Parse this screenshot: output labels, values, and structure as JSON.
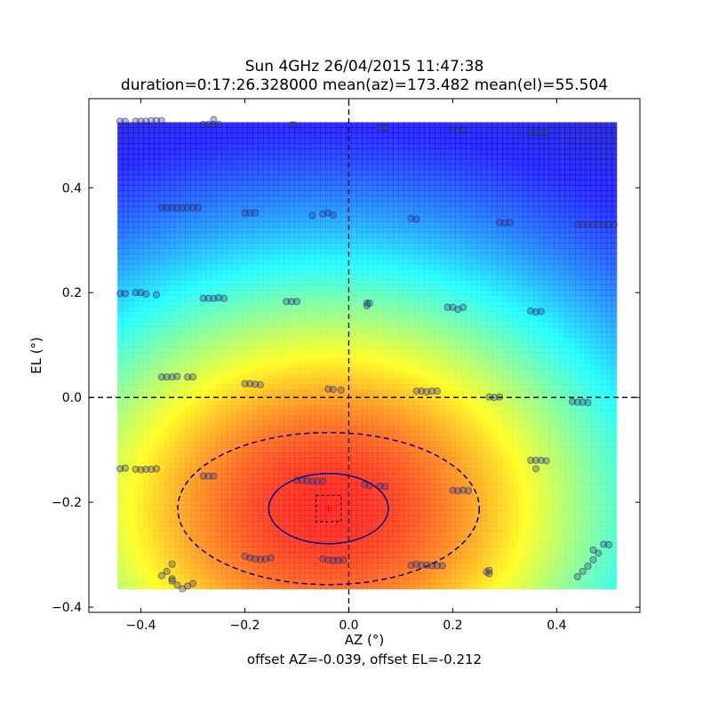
{
  "chart_data": {
    "type": "heatmap",
    "title": "Sun 4GHz 26/04/2015 11:47:38",
    "subtitle": "duration=0:17:26.328000 mean(az)=173.482 mean(el)=55.504",
    "xlabel": "AZ (°)",
    "ylabel": "EL (°)",
    "footer": "offset AZ=-0.039, offset EL=-0.212",
    "xlim": [
      -0.5,
      0.56
    ],
    "ylim": [
      -0.41,
      0.57
    ],
    "xticks": [
      -0.4,
      -0.2,
      0.0,
      0.2,
      0.4
    ],
    "xtick_labels": [
      "−0.4",
      "−0.2",
      "0.0",
      "0.2",
      "0.4"
    ],
    "yticks": [
      -0.4,
      -0.2,
      0.0,
      0.2,
      0.4
    ],
    "ytick_labels": [
      "−0.4",
      "−0.2",
      "0.0",
      "0.2",
      "0.4"
    ],
    "heatmap": {
      "colormap": "jet",
      "extent": {
        "x": [
          -0.445,
          0.515
        ],
        "y": [
          -0.365,
          0.525
        ]
      },
      "peak": {
        "x": -0.039,
        "y": -0.212
      }
    },
    "offset": {
      "az": -0.039,
      "el": -0.212
    },
    "beam_contours": [
      {
        "style": "solid",
        "color": "#00008b",
        "cx": -0.039,
        "cy": -0.212,
        "rx": 0.115,
        "ry": 0.067
      },
      {
        "style": "dashed",
        "color": "#00008b",
        "cx": -0.039,
        "cy": -0.212,
        "rx": 0.29,
        "ry": 0.145
      }
    ],
    "crosshair": {
      "x": 0.0,
      "y": 0.0,
      "style": "dashed",
      "color": "#000000"
    },
    "peak_box": {
      "x": [
        -0.063,
        -0.015
      ],
      "y": [
        -0.237,
        -0.187
      ],
      "style": "dashed",
      "color": "#000000"
    },
    "peak_marker": {
      "x": -0.039,
      "y": -0.212,
      "color": "#ff0000",
      "symbol": "+"
    },
    "scan_points": [
      [
        -0.44,
        0.527
      ],
      [
        -0.43,
        0.527
      ],
      [
        -0.41,
        0.527
      ],
      [
        -0.4,
        0.527
      ],
      [
        -0.39,
        0.527
      ],
      [
        -0.38,
        0.528
      ],
      [
        -0.37,
        0.528
      ],
      [
        -0.36,
        0.528
      ],
      [
        -0.28,
        0.521
      ],
      [
        -0.27,
        0.521
      ],
      [
        -0.26,
        0.521
      ],
      [
        -0.25,
        0.521
      ],
      [
        -0.26,
        0.53
      ],
      [
        -0.11,
        0.52
      ],
      [
        -0.105,
        0.52
      ],
      [
        0.06,
        0.514
      ],
      [
        0.07,
        0.514
      ],
      [
        0.07,
        0.514
      ],
      [
        0.2,
        0.51
      ],
      [
        0.21,
        0.509
      ],
      [
        0.22,
        0.51
      ],
      [
        0.35,
        0.505
      ],
      [
        0.36,
        0.505
      ],
      [
        0.37,
        0.505
      ],
      [
        0.38,
        0.505
      ],
      [
        -0.36,
        0.362
      ],
      [
        -0.35,
        0.362
      ],
      [
        -0.34,
        0.362
      ],
      [
        -0.33,
        0.362
      ],
      [
        -0.32,
        0.362
      ],
      [
        -0.31,
        0.362
      ],
      [
        -0.3,
        0.362
      ],
      [
        -0.29,
        0.362
      ],
      [
        -0.2,
        0.352
      ],
      [
        -0.19,
        0.352
      ],
      [
        -0.18,
        0.352
      ],
      [
        -0.07,
        0.347
      ],
      [
        -0.05,
        0.35
      ],
      [
        -0.04,
        0.352
      ],
      [
        -0.03,
        0.348
      ],
      [
        0.12,
        0.341
      ],
      [
        0.13,
        0.34
      ],
      [
        0.29,
        0.334
      ],
      [
        0.3,
        0.333
      ],
      [
        0.31,
        0.334
      ],
      [
        0.44,
        0.33
      ],
      [
        0.45,
        0.33
      ],
      [
        0.46,
        0.33
      ],
      [
        0.47,
        0.33
      ],
      [
        0.48,
        0.33
      ],
      [
        0.49,
        0.33
      ],
      [
        0.5,
        0.33
      ],
      [
        0.51,
        0.33
      ],
      [
        -0.44,
        0.198
      ],
      [
        -0.43,
        0.198
      ],
      [
        -0.41,
        0.2
      ],
      [
        -0.4,
        0.2
      ],
      [
        -0.39,
        0.197
      ],
      [
        -0.37,
        0.196
      ],
      [
        -0.28,
        0.189
      ],
      [
        -0.27,
        0.189
      ],
      [
        -0.26,
        0.189
      ],
      [
        -0.25,
        0.19
      ],
      [
        -0.24,
        0.189
      ],
      [
        -0.12,
        0.183
      ],
      [
        -0.11,
        0.183
      ],
      [
        -0.1,
        0.183
      ],
      [
        0.035,
        0.18
      ],
      [
        0.04,
        0.18
      ],
      [
        0.035,
        0.175
      ],
      [
        0.19,
        0.172
      ],
      [
        0.2,
        0.172
      ],
      [
        0.21,
        0.168
      ],
      [
        0.22,
        0.172
      ],
      [
        0.35,
        0.165
      ],
      [
        0.36,
        0.163
      ],
      [
        0.37,
        0.164
      ],
      [
        -0.36,
        0.039
      ],
      [
        -0.35,
        0.039
      ],
      [
        -0.34,
        0.039
      ],
      [
        -0.33,
        0.04
      ],
      [
        -0.31,
        0.039
      ],
      [
        -0.3,
        0.039
      ],
      [
        -0.2,
        0.026
      ],
      [
        -0.19,
        0.026
      ],
      [
        -0.18,
        0.025
      ],
      [
        -0.17,
        0.024
      ],
      [
        -0.04,
        0.016
      ],
      [
        -0.03,
        0.015
      ],
      [
        -0.015,
        0.014
      ],
      [
        0.13,
        0.012
      ],
      [
        0.14,
        0.012
      ],
      [
        0.15,
        0.011
      ],
      [
        0.16,
        0.012
      ],
      [
        0.17,
        0.012
      ],
      [
        0.27,
        0.001
      ],
      [
        0.28,
        0.0
      ],
      [
        0.29,
        0.001
      ],
      [
        0.43,
        -0.008
      ],
      [
        0.44,
        -0.009
      ],
      [
        0.45,
        -0.009
      ],
      [
        0.46,
        -0.01
      ],
      [
        -0.44,
        -0.136
      ],
      [
        -0.43,
        -0.135
      ],
      [
        -0.41,
        -0.137
      ],
      [
        -0.4,
        -0.138
      ],
      [
        -0.39,
        -0.137
      ],
      [
        -0.38,
        -0.137
      ],
      [
        -0.37,
        -0.136
      ],
      [
        -0.28,
        -0.15
      ],
      [
        -0.27,
        -0.15
      ],
      [
        -0.26,
        -0.15
      ],
      [
        -0.1,
        -0.158
      ],
      [
        -0.09,
        -0.158
      ],
      [
        -0.08,
        -0.159
      ],
      [
        -0.07,
        -0.16
      ],
      [
        -0.06,
        -0.16
      ],
      [
        -0.05,
        -0.16
      ],
      [
        0.03,
        -0.166
      ],
      [
        0.04,
        -0.168
      ],
      [
        0.06,
        -0.169
      ],
      [
        0.07,
        -0.17
      ],
      [
        0.2,
        -0.177
      ],
      [
        0.21,
        -0.178
      ],
      [
        0.22,
        -0.177
      ],
      [
        0.23,
        -0.178
      ],
      [
        0.35,
        -0.12
      ],
      [
        0.36,
        -0.12
      ],
      [
        0.37,
        -0.12
      ],
      [
        0.38,
        -0.121
      ],
      [
        0.36,
        -0.136
      ],
      [
        0.49,
        -0.28
      ],
      [
        0.5,
        -0.281
      ],
      [
        0.48,
        -0.297
      ],
      [
        0.47,
        -0.31
      ],
      [
        0.46,
        -0.322
      ],
      [
        0.45,
        -0.332
      ],
      [
        0.44,
        -0.342
      ],
      [
        0.47,
        -0.291
      ],
      [
        -0.34,
        -0.318
      ],
      [
        -0.35,
        -0.332
      ],
      [
        -0.36,
        -0.34
      ],
      [
        -0.34,
        -0.35
      ],
      [
        -0.33,
        -0.358
      ],
      [
        -0.32,
        -0.365
      ],
      [
        -0.31,
        -0.36
      ],
      [
        -0.3,
        -0.355
      ],
      [
        -0.34,
        -0.346
      ],
      [
        -0.2,
        -0.303
      ],
      [
        -0.19,
        -0.306
      ],
      [
        -0.18,
        -0.308
      ],
      [
        -0.17,
        -0.309
      ],
      [
        -0.16,
        -0.308
      ],
      [
        -0.15,
        -0.306
      ],
      [
        -0.05,
        -0.308
      ],
      [
        -0.04,
        -0.31
      ],
      [
        -0.03,
        -0.311
      ],
      [
        -0.02,
        -0.311
      ],
      [
        -0.01,
        -0.31
      ],
      [
        0.12,
        -0.32
      ],
      [
        0.13,
        -0.318
      ],
      [
        0.14,
        -0.32
      ],
      [
        0.15,
        -0.32
      ],
      [
        0.16,
        -0.321
      ],
      [
        0.17,
        -0.321
      ],
      [
        0.18,
        -0.321
      ],
      [
        0.27,
        -0.33
      ],
      [
        0.27,
        -0.336
      ],
      [
        0.265,
        -0.333
      ]
    ]
  }
}
